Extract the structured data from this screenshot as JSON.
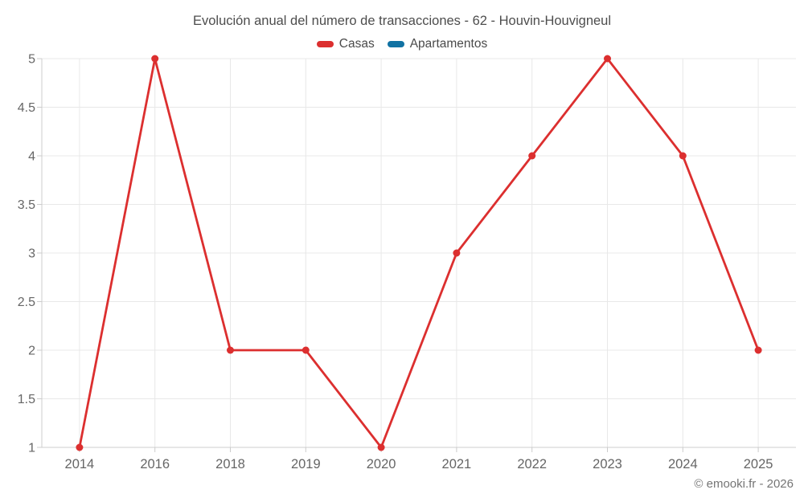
{
  "title": "Evolución anual del número de transacciones - 62 - Houvin-Houvigneul",
  "legend": [
    {
      "label": "Casas",
      "color": "#dc2f2f"
    },
    {
      "label": "Apartamentos",
      "color": "#1172a3"
    }
  ],
  "footer": {
    "credit": "© emooki.fr - 2026"
  },
  "colors": {
    "background": "#ffffff",
    "grid": "#e8e8e8",
    "axis": "#cccccc",
    "title_text": "#4d4d4d",
    "axis_text": "#666666",
    "footer_text": "#757575",
    "series_casas": "#dc2f2f",
    "series_apartamentos": "#1172a3"
  },
  "chart_data": {
    "type": "line",
    "title": "Evolución anual del número de transacciones - 62 - Houvin-Houvigneul",
    "categories": [
      "2014",
      "2016",
      "2018",
      "2019",
      "2020",
      "2021",
      "2022",
      "2023",
      "2024",
      "2025"
    ],
    "series": [
      {
        "name": "Casas",
        "color": "#dc2f2f",
        "values": [
          1,
          5,
          2,
          2,
          1,
          3,
          4,
          5,
          4,
          2
        ]
      },
      {
        "name": "Apartamentos",
        "color": "#1172a3",
        "values": []
      }
    ],
    "xlabel": "",
    "ylabel": "",
    "ylim": [
      1,
      5
    ],
    "ytick_step": 0.5,
    "ytick_labels": [
      "1",
      "1.5",
      "2",
      "2.5",
      "3",
      "3.5",
      "4",
      "4.5",
      "5"
    ],
    "grid": true,
    "legend_position": "top",
    "markers": true
  }
}
